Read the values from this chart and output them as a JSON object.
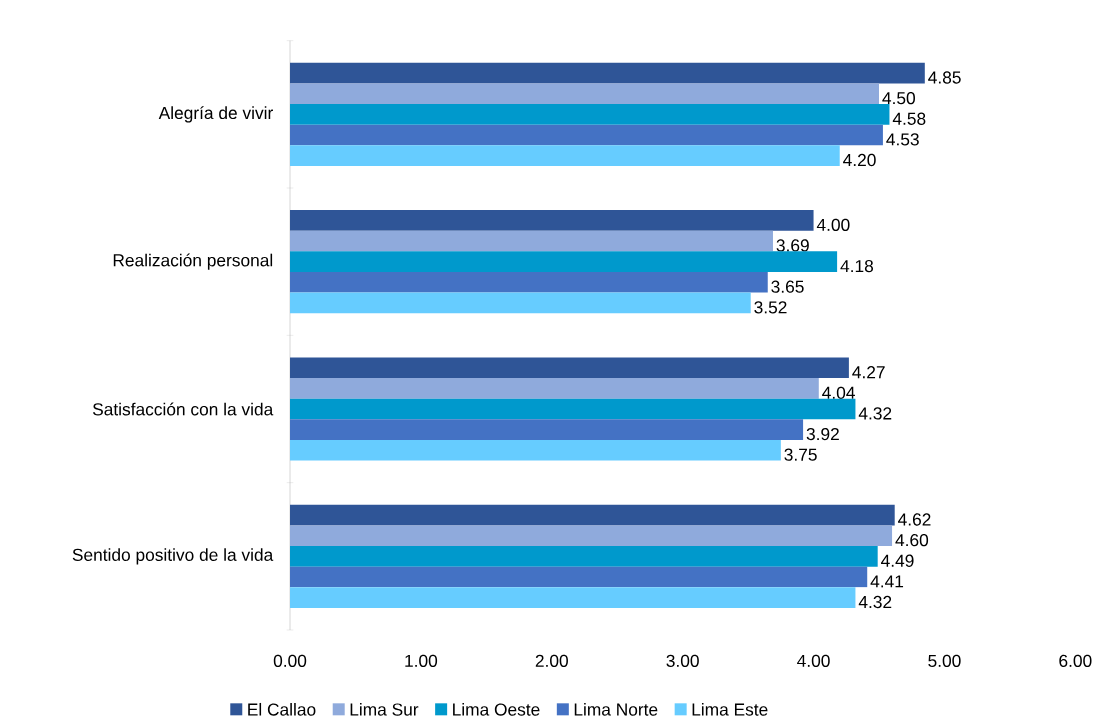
{
  "chart_data": {
    "type": "bar",
    "orientation": "horizontal",
    "categories": [
      "Alegría de vivir",
      "Realización personal",
      "Satisfacción con la vida",
      "Sentido positivo de la vida"
    ],
    "series": [
      {
        "name": "El Callao",
        "color": "#2f5597",
        "values": [
          4.85,
          4.0,
          4.27,
          4.62
        ],
        "value_labels": [
          "4.85",
          "4.00",
          "4.27",
          "4.62"
        ]
      },
      {
        "name": "Lima Sur",
        "color": "#8faadc",
        "values": [
          4.5,
          3.69,
          4.04,
          4.6
        ],
        "value_labels": [
          "4.50",
          "3.69",
          "4.04",
          "4.60"
        ]
      },
      {
        "name": "Lima Oeste",
        "color": "#0099cc",
        "values": [
          4.58,
          4.18,
          4.32,
          4.49
        ],
        "value_labels": [
          "4.58",
          "4.18",
          "4.32",
          "4.49"
        ]
      },
      {
        "name": "Lima Norte",
        "color": "#4472c4",
        "values": [
          4.53,
          3.65,
          3.92,
          4.41
        ],
        "value_labels": [
          "4.53",
          "3.65",
          "3.92",
          "4.41"
        ]
      },
      {
        "name": "Lima Este",
        "color": "#66ccff",
        "values": [
          4.2,
          3.52,
          3.75,
          4.32
        ],
        "value_labels": [
          "4.20",
          "3.52",
          "3.75",
          "4.32"
        ]
      }
    ],
    "xlim": [
      0,
      6
    ],
    "xticks": [
      {
        "value": 0,
        "label": "0.00"
      },
      {
        "value": 1,
        "label": "1.00"
      },
      {
        "value": 2,
        "label": "2.00"
      },
      {
        "value": 3,
        "label": "3.00"
      },
      {
        "value": 4,
        "label": "4.00"
      },
      {
        "value": 5,
        "label": "5.00"
      },
      {
        "value": 6,
        "label": "6.00"
      }
    ],
    "grid": false,
    "legend": "bottom"
  }
}
